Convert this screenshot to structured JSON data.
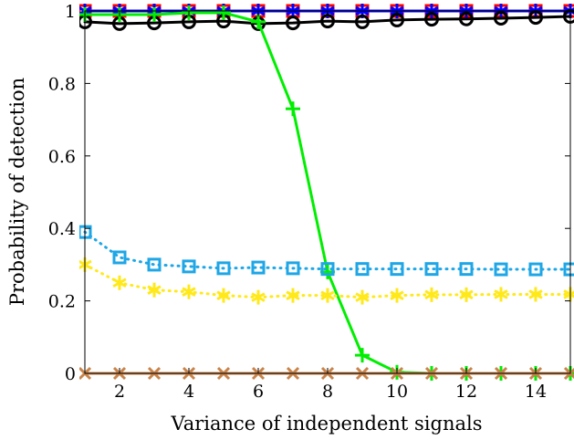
{
  "chart_data": {
    "type": "line",
    "xlabel": "Variance of independent signals",
    "ylabel": "Probability of detection",
    "xlim": [
      1,
      15
    ],
    "ylim": [
      0,
      1
    ],
    "xticks": [
      2,
      4,
      6,
      8,
      10,
      12,
      14
    ],
    "yticks": [
      0,
      0.2,
      0.4,
      0.6,
      0.8,
      1
    ],
    "ytick_labels": [
      "0",
      "0.2",
      "0.4",
      "0.6",
      "0.8",
      "1"
    ],
    "grid": false,
    "x": [
      1,
      2,
      3,
      4,
      5,
      6,
      7,
      8,
      9,
      10,
      11,
      12,
      13,
      14,
      15
    ],
    "series": [
      {
        "color": "#ff0000",
        "line": "solid",
        "marker": "square",
        "values": [
          1,
          1,
          1,
          1,
          1,
          1,
          1,
          1,
          1,
          1,
          1,
          1,
          1,
          1,
          1
        ]
      },
      {
        "color": "#0000ff",
        "line": "solid",
        "marker": "asterisk",
        "values": [
          1,
          1,
          1,
          1,
          1,
          1,
          1,
          1,
          1,
          1,
          1,
          1,
          1,
          1,
          1
        ]
      },
      {
        "color": "#000000",
        "line": "solid",
        "marker": "circle",
        "values": [
          0.97,
          0.965,
          0.967,
          0.97,
          0.972,
          0.965,
          0.967,
          0.972,
          0.97,
          0.975,
          0.977,
          0.978,
          0.98,
          0.982,
          0.985
        ]
      },
      {
        "color": "#00ee00",
        "line": "solid",
        "marker": "plus",
        "values": [
          0.99,
          0.99,
          0.99,
          0.995,
          0.995,
          0.97,
          0.73,
          0.28,
          0.05,
          0.003,
          0,
          0,
          0,
          0,
          0
        ]
      },
      {
        "color": "#1ea6e6",
        "line": "dotted",
        "marker": "square",
        "values": [
          0.39,
          0.32,
          0.3,
          0.295,
          0.29,
          0.292,
          0.29,
          0.288,
          0.288,
          0.288,
          0.288,
          0.288,
          0.287,
          0.287,
          0.287
        ]
      },
      {
        "color": "#ffe91a",
        "line": "dotted",
        "marker": "asterisk",
        "values": [
          0.3,
          0.25,
          0.23,
          0.225,
          0.215,
          0.21,
          0.215,
          0.215,
          0.21,
          0.215,
          0.217,
          0.217,
          0.218,
          0.218,
          0.218
        ]
      },
      {
        "color": "#c8834a",
        "line": "solid",
        "marker": "cross",
        "values": [
          0,
          0,
          0,
          0,
          0,
          0,
          0,
          0,
          0,
          0,
          0,
          0,
          0,
          0,
          0
        ]
      }
    ]
  }
}
